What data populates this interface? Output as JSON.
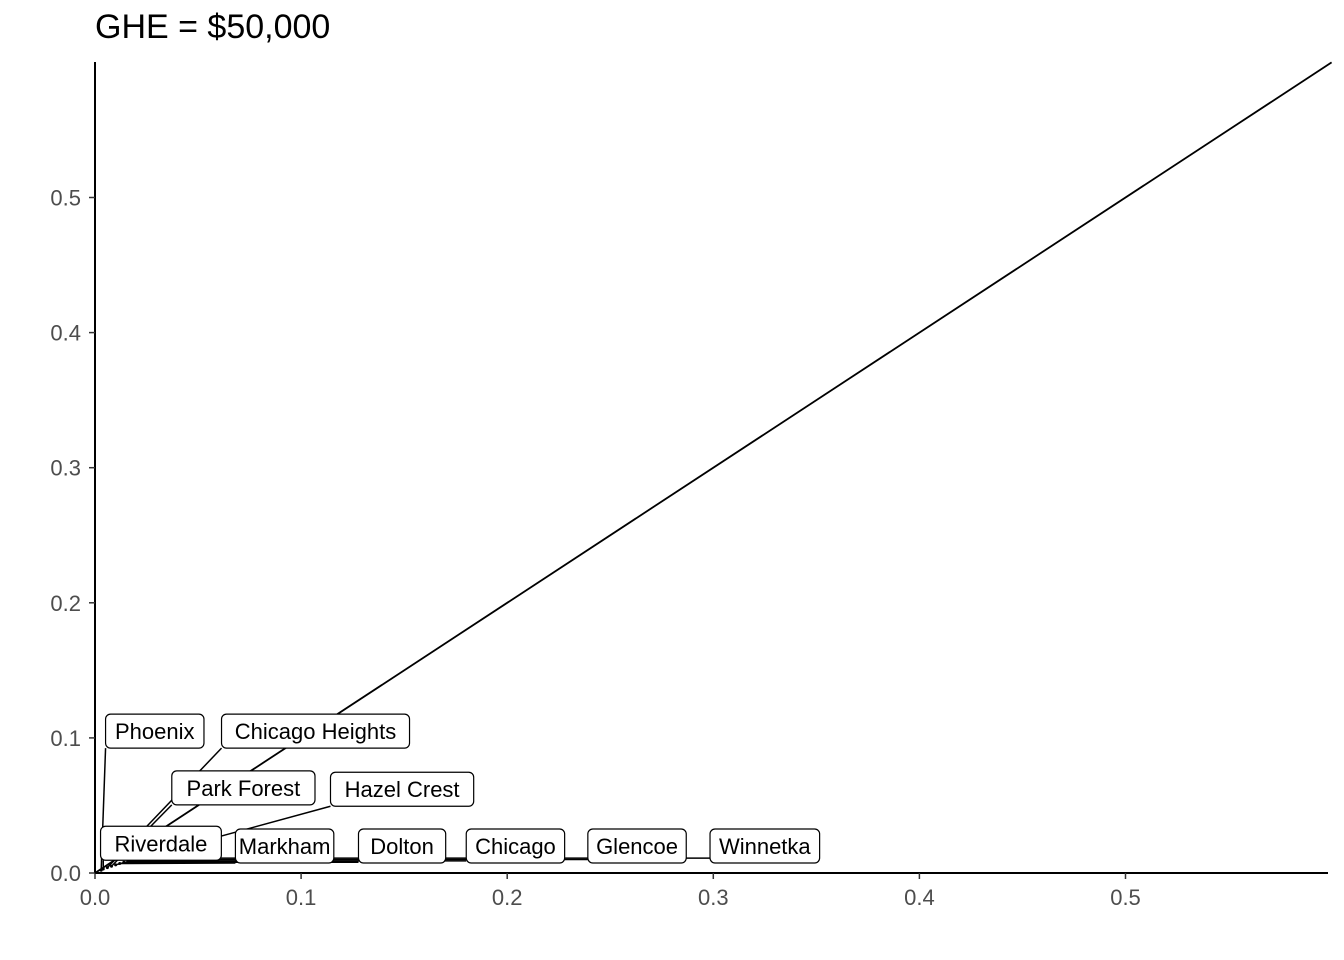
{
  "chart_data": {
    "type": "line",
    "title": "GHE = $50,000",
    "xlabel": "",
    "ylabel": "",
    "xlim": [
      0,
      0.6
    ],
    "ylim": [
      0,
      0.6
    ],
    "x_ticks": [
      "0.0",
      "0.1",
      "0.2",
      "0.3",
      "0.4",
      "0.5"
    ],
    "y_ticks": [
      "0.0",
      "0.1",
      "0.2",
      "0.3",
      "0.4",
      "0.5"
    ],
    "grid": false,
    "reference_line": {
      "x": [
        0,
        0.6
      ],
      "y": [
        0,
        0.6
      ]
    },
    "points": [
      {
        "name": "Phoenix",
        "x": 0.003,
        "y": 0.002,
        "label_x": 0.029,
        "label_y": 0.105
      },
      {
        "name": "Chicago Heights",
        "x": 0.006,
        "y": 0.004,
        "label_x": 0.107,
        "label_y": 0.105
      },
      {
        "name": "Park Forest",
        "x": 0.008,
        "y": 0.005,
        "label_x": 0.072,
        "label_y": 0.063
      },
      {
        "name": "Hazel Crest",
        "x": 0.01,
        "y": 0.006,
        "label_x": 0.149,
        "label_y": 0.062
      },
      {
        "name": "Riverdale",
        "x": 0.004,
        "y": 0.003,
        "label_x": 0.032,
        "label_y": 0.022
      },
      {
        "name": "Markham",
        "x": 0.012,
        "y": 0.007,
        "label_x": 0.092,
        "label_y": 0.02
      },
      {
        "name": "Dolton",
        "x": 0.014,
        "y": 0.008,
        "label_x": 0.149,
        "label_y": 0.02
      },
      {
        "name": "Chicago",
        "x": 0.016,
        "y": 0.009,
        "label_x": 0.204,
        "label_y": 0.02
      },
      {
        "name": "Glencoe",
        "x": 0.018,
        "y": 0.01,
        "label_x": 0.263,
        "label_y": 0.02
      },
      {
        "name": "Winnetka",
        "x": 0.02,
        "y": 0.011,
        "label_x": 0.325,
        "label_y": 0.02
      }
    ]
  }
}
